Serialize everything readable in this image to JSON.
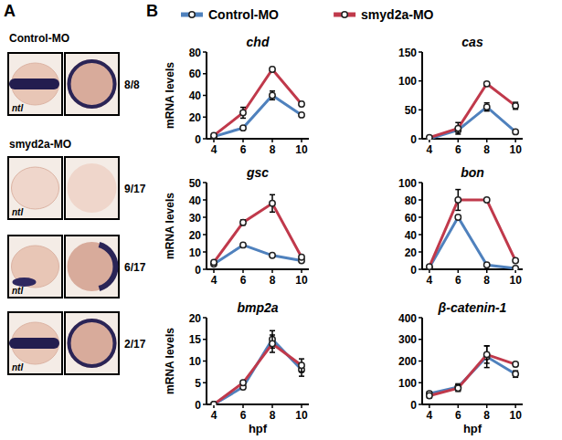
{
  "panel_letters": [
    "A",
    "B"
  ],
  "panel_a": {
    "groups": [
      {
        "label": "Control-MO",
        "rows": [
          {
            "probe": "ntl",
            "count": "8/8"
          }
        ]
      },
      {
        "label": "smyd2a-MO",
        "rows": [
          {
            "probe": "ntl",
            "count": "9/17"
          },
          {
            "probe": "ntl",
            "count": "6/17"
          },
          {
            "probe": "ntl",
            "count": "2/17"
          }
        ]
      }
    ]
  },
  "chart_data": [
    {
      "type": "line",
      "title": "chd",
      "y_label": "mRNA levels",
      "x": [
        4,
        6,
        8,
        10
      ],
      "xlim": [
        3.5,
        10.5
      ],
      "xticks": [
        4,
        6,
        8,
        10
      ],
      "ylim": [
        0,
        80
      ],
      "yticks": [
        0,
        20,
        40,
        60,
        80
      ],
      "grid": false,
      "legend": "top",
      "marker": "circle",
      "series": [
        {
          "name": "Control-MO",
          "color": "#4f81bd",
          "values": [
            2,
            10,
            40,
            22
          ],
          "error": [
            0.5,
            1,
            4,
            1
          ]
        },
        {
          "name": "smyd2a-MO",
          "color": "#c0394b",
          "values": [
            3,
            24,
            64,
            32
          ],
          "error": [
            0.5,
            5,
            2,
            2
          ]
        }
      ]
    },
    {
      "type": "line",
      "title": "cas",
      "x": [
        4,
        6,
        8,
        10
      ],
      "xlim": [
        3.5,
        10.5
      ],
      "xticks": [
        4,
        6,
        8,
        10
      ],
      "ylim": [
        0,
        150
      ],
      "yticks": [
        0,
        50,
        100,
        150
      ],
      "grid": false,
      "marker": "circle",
      "series": [
        {
          "color": "#4f81bd",
          "values": [
            0,
            15,
            55,
            12
          ],
          "error": [
            0.5,
            3,
            7,
            2
          ]
        },
        {
          "color": "#c0394b",
          "values": [
            2,
            18,
            95,
            57
          ],
          "error": [
            0.5,
            10,
            3,
            6
          ]
        }
      ]
    },
    {
      "type": "line",
      "title": "gsc",
      "y_label": "mRNA levels",
      "x": [
        4,
        6,
        8,
        10
      ],
      "xlim": [
        3.5,
        10.5
      ],
      "xticks": [
        4,
        6,
        8,
        10
      ],
      "ylim": [
        0,
        50
      ],
      "yticks": [
        0,
        10,
        20,
        30,
        40,
        50
      ],
      "grid": false,
      "marker": "circle",
      "series": [
        {
          "color": "#4f81bd",
          "values": [
            3,
            14,
            8,
            5
          ],
          "error": [
            0.5,
            1,
            0.5,
            0.5
          ]
        },
        {
          "color": "#c0394b",
          "values": [
            4,
            27,
            38,
            7
          ],
          "error": [
            0.5,
            1.5,
            5,
            1
          ]
        }
      ]
    },
    {
      "type": "line",
      "title": "bon",
      "x": [
        4,
        6,
        8,
        10
      ],
      "xlim": [
        3.5,
        10.5
      ],
      "xticks": [
        4,
        6,
        8,
        10
      ],
      "ylim": [
        0,
        100
      ],
      "yticks": [
        0,
        20,
        40,
        60,
        80,
        100
      ],
      "grid": false,
      "marker": "circle",
      "series": [
        {
          "color": "#4f81bd",
          "values": [
            2,
            60,
            5,
            1
          ],
          "error": [
            0.5,
            2,
            1,
            0.5
          ]
        },
        {
          "color": "#c0394b",
          "values": [
            3,
            80,
            80,
            10
          ],
          "error": [
            0.5,
            12,
            1,
            1
          ]
        }
      ]
    },
    {
      "type": "line",
      "title": "bmp2a",
      "y_label": "mRNA levels",
      "x_label": "hpf",
      "x": [
        4,
        6,
        8,
        10
      ],
      "xlim": [
        3.5,
        10.5
      ],
      "xticks": [
        4,
        6,
        8,
        10
      ],
      "ylim": [
        0,
        20
      ],
      "yticks": [
        0,
        5,
        10,
        15,
        20
      ],
      "grid": false,
      "marker": "circle",
      "series": [
        {
          "color": "#4f81bd",
          "values": [
            0,
            4,
            15,
            8
          ],
          "error": [
            0.2,
            0.5,
            2,
            1.5
          ]
        },
        {
          "color": "#c0394b",
          "values": [
            0,
            5,
            14,
            9
          ],
          "error": [
            0.2,
            0.5,
            2,
            1.5
          ]
        }
      ]
    },
    {
      "type": "line",
      "title": "β-catenin-1",
      "x_label": "hpf",
      "x": [
        4,
        6,
        8,
        10
      ],
      "xlim": [
        3.5,
        10.5
      ],
      "xticks": [
        4,
        6,
        8,
        10
      ],
      "ylim": [
        0,
        400
      ],
      "yticks": [
        0,
        100,
        200,
        300,
        400
      ],
      "grid": false,
      "marker": "circle",
      "series": [
        {
          "color": "#4f81bd",
          "values": [
            50,
            80,
            220,
            140
          ],
          "error": [
            10,
            15,
            50,
            15
          ]
        },
        {
          "color": "#c0394b",
          "values": [
            40,
            75,
            230,
            185
          ],
          "error": [
            10,
            15,
            40,
            10
          ]
        }
      ]
    }
  ]
}
